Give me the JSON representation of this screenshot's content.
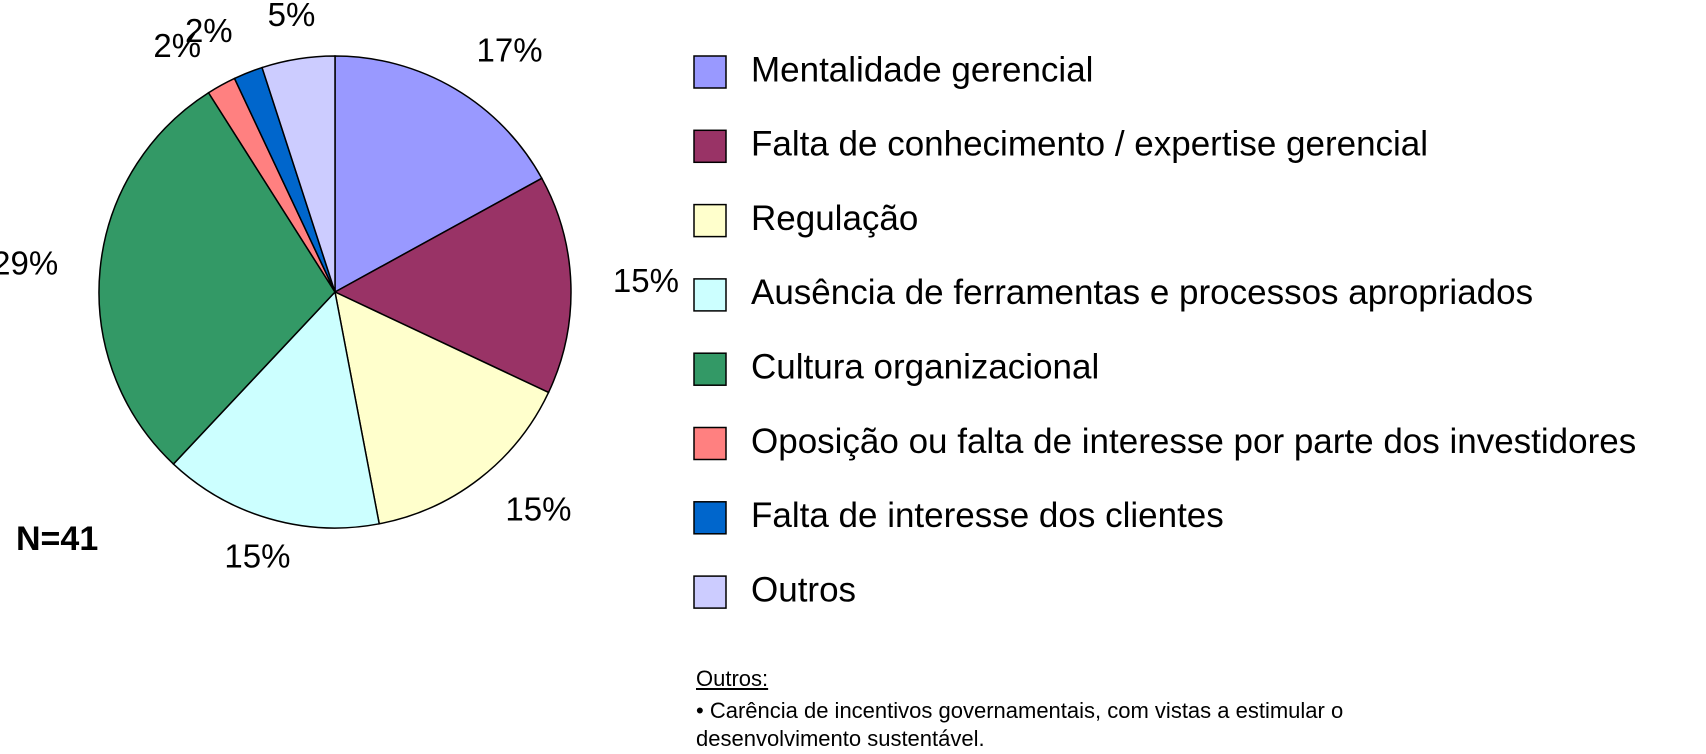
{
  "chart_data": {
    "type": "pie",
    "categories": [
      "Mentalidade gerencial",
      "Falta de conhecimento / expertise gerencial",
      "Regulação",
      "Ausência de ferramentas e processos apropriados",
      "Cultura organizacional",
      "Oposição ou falta de interesse por parte dos investidores",
      "Falta de interesse dos clientes",
      "Outros"
    ],
    "values": [
      17,
      15,
      15,
      15,
      29,
      2,
      2,
      5
    ],
    "value_labels": [
      "17%",
      "15%",
      "15%",
      "15%",
      "29%",
      "2%",
      "2%",
      "5%"
    ],
    "colors": [
      "#9999ff",
      "#993366",
      "#ffffcc",
      "#ccffff",
      "#339966",
      "#ff8080",
      "#0066cc",
      "#ccccff"
    ],
    "annotation": "N=41",
    "note_title": "Outros:",
    "note": "• Carência de incentivos governamentais, com vistas a estimular o desenvolvimento sustentável."
  }
}
